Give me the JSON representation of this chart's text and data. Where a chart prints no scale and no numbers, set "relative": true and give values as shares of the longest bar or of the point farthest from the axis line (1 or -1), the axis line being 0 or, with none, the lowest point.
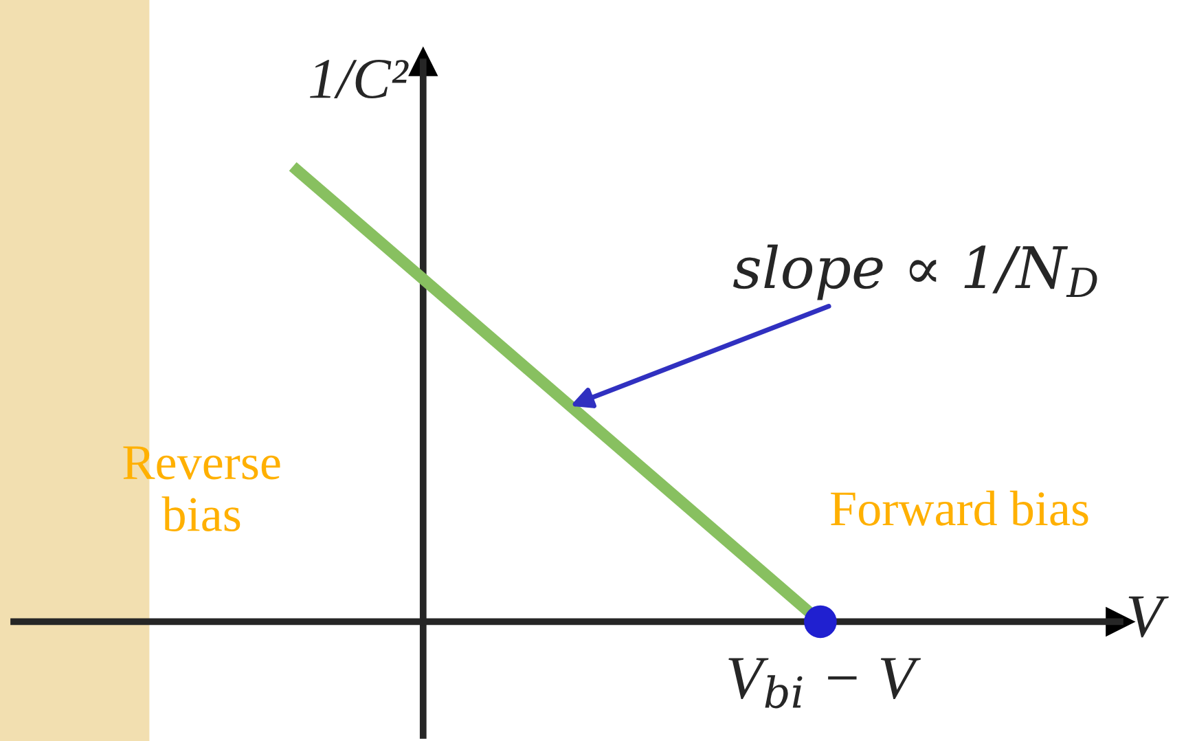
{
  "chart_data": {
    "type": "line",
    "relative": true,
    "xlabel": "V",
    "ylabel": "1/C²",
    "categories": [
      null,
      null
    ],
    "series": [
      {
        "color": "#88c060",
        "values": [
          1,
          0
        ]
      }
    ],
    "annotations": [
      "slope ∝ 1/N$_{D}$",
      "V$_{bi}$ − V",
      "Reverse\nbias",
      "Forward bias"
    ]
  }
}
